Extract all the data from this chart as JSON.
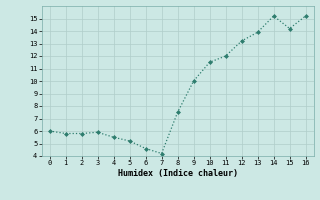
{
  "x": [
    0,
    1,
    2,
    3,
    4,
    5,
    6,
    7,
    8,
    9,
    10,
    11,
    12,
    13,
    14,
    15,
    16
  ],
  "y": [
    6.0,
    5.8,
    5.8,
    5.9,
    5.5,
    5.2,
    4.6,
    4.2,
    7.5,
    10.0,
    11.5,
    12.0,
    13.2,
    13.9,
    15.2,
    14.2,
    15.2
  ],
  "xlabel": "Humidex (Indice chaleur)",
  "ylim": [
    4,
    16
  ],
  "xlim": [
    -0.5,
    16.5
  ],
  "yticks": [
    4,
    5,
    6,
    7,
    8,
    9,
    10,
    11,
    12,
    13,
    14,
    15
  ],
  "xticks": [
    0,
    1,
    2,
    3,
    4,
    5,
    6,
    7,
    8,
    9,
    10,
    11,
    12,
    13,
    14,
    15,
    16
  ],
  "line_color": "#2e7d6e",
  "marker_color": "#2e7d6e",
  "bg_color": "#cce8e4",
  "grid_color": "#b0ceca",
  "font_family": "monospace"
}
